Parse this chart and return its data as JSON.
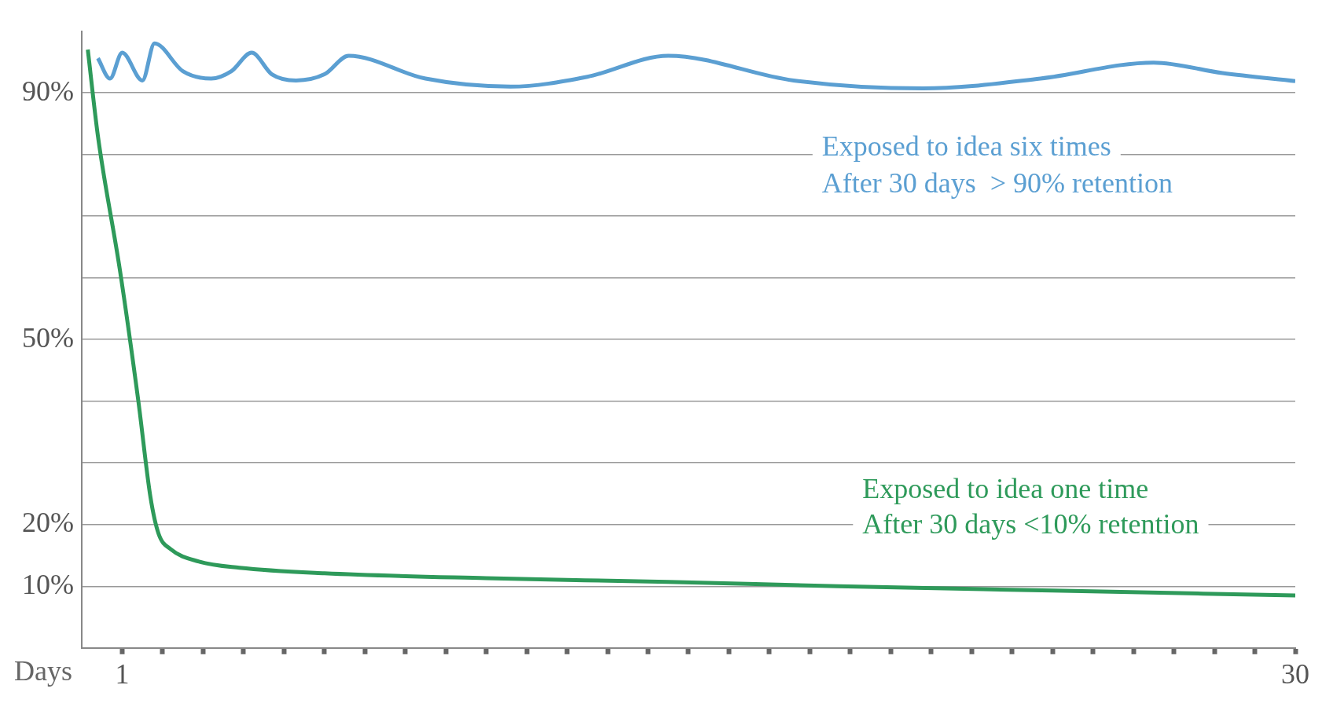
{
  "chart_data": {
    "type": "line",
    "xlabel": "Days",
    "xlim": [
      0,
      30
    ],
    "xticks": [
      {
        "value": 1,
        "label": "1"
      },
      {
        "value": 2,
        "label": null
      },
      {
        "value": 3,
        "label": null
      },
      {
        "value": 4,
        "label": null
      },
      {
        "value": 5,
        "label": null
      },
      {
        "value": 6,
        "label": null
      },
      {
        "value": 7,
        "label": null
      },
      {
        "value": 8,
        "label": null
      },
      {
        "value": 9,
        "label": null
      },
      {
        "value": 10,
        "label": null
      },
      {
        "value": 11,
        "label": null
      },
      {
        "value": 12,
        "label": null
      },
      {
        "value": 13,
        "label": null
      },
      {
        "value": 14,
        "label": null
      },
      {
        "value": 15,
        "label": null
      },
      {
        "value": 16,
        "label": null
      },
      {
        "value": 17,
        "label": null
      },
      {
        "value": 18,
        "label": null
      },
      {
        "value": 19,
        "label": null
      },
      {
        "value": 20,
        "label": null
      },
      {
        "value": 21,
        "label": null
      },
      {
        "value": 22,
        "label": null
      },
      {
        "value": 23,
        "label": null
      },
      {
        "value": 24,
        "label": null
      },
      {
        "value": 25,
        "label": null
      },
      {
        "value": 26,
        "label": null
      },
      {
        "value": 27,
        "label": null
      },
      {
        "value": 28,
        "label": null
      },
      {
        "value": 29,
        "label": null
      },
      {
        "value": 30,
        "label": "30"
      }
    ],
    "ylim": [
      0,
      100
    ],
    "yticks": [
      {
        "value": 10,
        "label": "10%"
      },
      {
        "value": 20,
        "label": "20%"
      },
      {
        "value": 30,
        "label": null
      },
      {
        "value": 40,
        "label": null
      },
      {
        "value": 50,
        "label": "50%"
      },
      {
        "value": 60,
        "label": null
      },
      {
        "value": 70,
        "label": null
      },
      {
        "value": 80,
        "label": null
      },
      {
        "value": 90,
        "label": "90%"
      }
    ],
    "grid": "y",
    "series": [
      {
        "color": "#5b9fd2",
        "x": [
          0.4,
          0.7,
          1.0,
          1.5,
          1.8,
          2.5,
          3.2,
          3.7,
          4.2,
          4.7,
          5.3,
          6.0,
          6.6,
          8.5,
          10.6,
          12.5,
          14.5,
          17.6,
          20.8,
          23.7,
          26.5,
          28.2,
          30
        ],
        "values": [
          95.6,
          92.3,
          96.5,
          92,
          98,
          93.5,
          92.3,
          93.5,
          96.5,
          93,
          92,
          93,
          96,
          92.3,
          91,
          92.6,
          96,
          92,
          90.7,
          92.3,
          94.9,
          93.2,
          91.9
        ]
      },
      {
        "color": "#2e9a5a",
        "x": [
          0.15,
          0.4,
          0.95,
          1.4,
          1.7,
          1.9,
          2.2,
          2.9,
          3.9,
          6,
          10,
          14.5,
          18.7,
          24,
          30
        ],
        "values": [
          97,
          83,
          61,
          40,
          24.4,
          18.5,
          16,
          14,
          13,
          12.1,
          11.3,
          10.7,
          10,
          9.3,
          8.5
        ]
      }
    ],
    "annotations": [
      "Exposed to idea six times",
      "After 30 days  > 90% retention",
      "Exposed to idea one time",
      "After 30 days <10% retention"
    ]
  }
}
